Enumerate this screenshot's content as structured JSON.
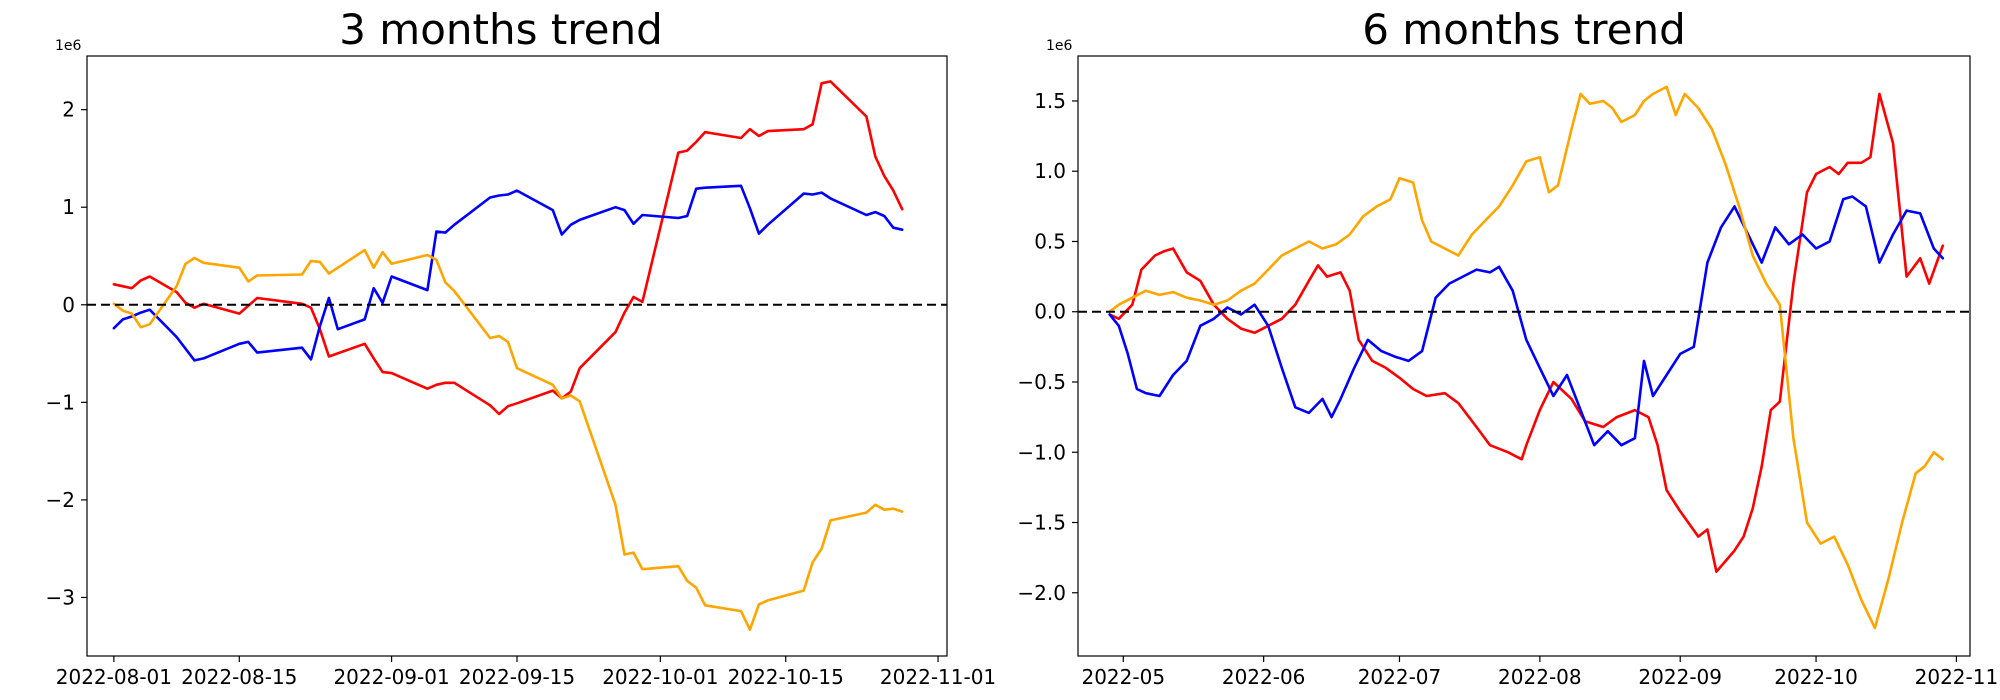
{
  "chart_data": [
    {
      "type": "line",
      "title": "3 months trend",
      "xlabel": "",
      "ylabel": "",
      "y_unit_multiplier": "1e6",
      "x_ticks": [
        "2022-08-01",
        "2022-08-15",
        "2022-09-01",
        "2022-09-15",
        "2022-10-01",
        "2022-10-15",
        "2022-11-01"
      ],
      "y_ticks": [
        "2",
        "1",
        "0",
        "−1",
        "−2",
        "−3"
      ],
      "xlim": [
        "2022-07-29",
        "2022-11-02"
      ],
      "ylim": [
        -3.6,
        2.55
      ],
      "reference_line": {
        "y": 0,
        "style": "dashed",
        "color": "#000000"
      },
      "grid": false,
      "series": [
        {
          "color": "#ff0000",
          "x": [
            "2022-08-01",
            "2022-08-03",
            "2022-08-04",
            "2022-08-05",
            "2022-08-08",
            "2022-08-09",
            "2022-08-10",
            "2022-08-11",
            "2022-08-15",
            "2022-08-17",
            "2022-08-22",
            "2022-08-23",
            "2022-08-24",
            "2022-08-25",
            "2022-08-29",
            "2022-08-30",
            "2022-08-31",
            "2022-09-01",
            "2022-09-05",
            "2022-09-06",
            "2022-09-07",
            "2022-09-08",
            "2022-09-12",
            "2022-09-13",
            "2022-09-14",
            "2022-09-15",
            "2022-09-19",
            "2022-09-20",
            "2022-09-21",
            "2022-09-22",
            "2022-09-26",
            "2022-09-27",
            "2022-09-28",
            "2022-09-29",
            "2022-10-03",
            "2022-10-04",
            "2022-10-05",
            "2022-10-06",
            "2022-10-10",
            "2022-10-11",
            "2022-10-12",
            "2022-10-13",
            "2022-10-17",
            "2022-10-18",
            "2022-10-19",
            "2022-10-20",
            "2022-10-24",
            "2022-10-25",
            "2022-10-26",
            "2022-10-27",
            "2022-10-28"
          ],
          "values": [
            0.21,
            0.17,
            0.25,
            0.29,
            0.13,
            0.02,
            -0.03,
            0.01,
            -0.09,
            0.07,
            0.01,
            -0.03,
            -0.25,
            -0.53,
            -0.4,
            -0.55,
            -0.69,
            -0.7,
            -0.86,
            -0.82,
            -0.8,
            -0.8,
            -1.03,
            -1.12,
            -1.04,
            -1.01,
            -0.88,
            -0.96,
            -0.89,
            -0.65,
            -0.28,
            -0.08,
            0.08,
            0.03,
            1.56,
            1.58,
            1.67,
            1.77,
            1.71,
            1.8,
            1.73,
            1.78,
            1.8,
            1.85,
            2.27,
            2.29,
            1.93,
            1.52,
            1.32,
            1.17,
            0.98
          ]
        },
        {
          "color": "#0000ff",
          "x": [
            "2022-08-01",
            "2022-08-02",
            "2022-08-03",
            "2022-08-04",
            "2022-08-05",
            "2022-08-08",
            "2022-08-10",
            "2022-08-11",
            "2022-08-15",
            "2022-08-16",
            "2022-08-17",
            "2022-08-22",
            "2022-08-23",
            "2022-08-24",
            "2022-08-25",
            "2022-08-26",
            "2022-08-29",
            "2022-08-30",
            "2022-08-31",
            "2022-09-01",
            "2022-09-05",
            "2022-09-06",
            "2022-09-07",
            "2022-09-08",
            "2022-09-12",
            "2022-09-13",
            "2022-09-14",
            "2022-09-15",
            "2022-09-19",
            "2022-09-20",
            "2022-09-21",
            "2022-09-22",
            "2022-09-26",
            "2022-09-27",
            "2022-09-28",
            "2022-09-29",
            "2022-10-03",
            "2022-10-04",
            "2022-10-05",
            "2022-10-06",
            "2022-10-10",
            "2022-10-11",
            "2022-10-12",
            "2022-10-13",
            "2022-10-17",
            "2022-10-18",
            "2022-10-19",
            "2022-10-20",
            "2022-10-24",
            "2022-10-25",
            "2022-10-26",
            "2022-10-27",
            "2022-10-28"
          ],
          "values": [
            -0.24,
            -0.15,
            -0.12,
            -0.08,
            -0.05,
            -0.33,
            -0.57,
            -0.55,
            -0.4,
            -0.38,
            -0.49,
            -0.44,
            -0.56,
            -0.22,
            0.07,
            -0.25,
            -0.15,
            0.17,
            0.02,
            0.29,
            0.15,
            0.75,
            0.74,
            0.82,
            1.1,
            1.12,
            1.13,
            1.17,
            0.97,
            0.72,
            0.82,
            0.87,
            1.0,
            0.97,
            0.83,
            0.92,
            0.89,
            0.91,
            1.19,
            1.2,
            1.22,
            0.99,
            0.73,
            0.82,
            1.14,
            1.13,
            1.15,
            1.09,
            0.92,
            0.95,
            0.91,
            0.79,
            0.77
          ]
        },
        {
          "color": "#ffa500",
          "x": [
            "2022-08-01",
            "2022-08-02",
            "2022-08-03",
            "2022-08-04",
            "2022-08-05",
            "2022-08-08",
            "2022-08-09",
            "2022-08-10",
            "2022-08-11",
            "2022-08-15",
            "2022-08-16",
            "2022-08-17",
            "2022-08-22",
            "2022-08-23",
            "2022-08-24",
            "2022-08-25",
            "2022-08-29",
            "2022-08-30",
            "2022-08-31",
            "2022-09-01",
            "2022-09-05",
            "2022-09-06",
            "2022-09-07",
            "2022-09-08",
            "2022-09-12",
            "2022-09-13",
            "2022-09-14",
            "2022-09-15",
            "2022-09-19",
            "2022-09-20",
            "2022-09-21",
            "2022-09-22",
            "2022-09-26",
            "2022-09-27",
            "2022-09-28",
            "2022-09-29",
            "2022-10-03",
            "2022-10-04",
            "2022-10-05",
            "2022-10-06",
            "2022-10-10",
            "2022-10-11",
            "2022-10-12",
            "2022-10-13",
            "2022-10-17",
            "2022-10-18",
            "2022-10-19",
            "2022-10-20",
            "2022-10-24",
            "2022-10-25",
            "2022-10-26",
            "2022-10-27",
            "2022-10-28"
          ],
          "values": [
            0.01,
            -0.06,
            -0.09,
            -0.23,
            -0.2,
            0.19,
            0.42,
            0.48,
            0.43,
            0.38,
            0.24,
            0.3,
            0.31,
            0.45,
            0.44,
            0.32,
            0.56,
            0.38,
            0.54,
            0.42,
            0.51,
            0.46,
            0.23,
            0.14,
            -0.34,
            -0.32,
            -0.38,
            -0.65,
            -0.82,
            -0.96,
            -0.93,
            -0.99,
            -2.05,
            -2.56,
            -2.54,
            -2.71,
            -2.68,
            -2.83,
            -2.9,
            -3.08,
            -3.14,
            -3.33,
            -3.07,
            -3.03,
            -2.93,
            -2.64,
            -2.5,
            -2.21,
            -2.13,
            -2.05,
            -2.1,
            -2.09,
            -2.12
          ]
        }
      ]
    },
    {
      "type": "line",
      "title": "6 months trend",
      "xlabel": "",
      "ylabel": "",
      "y_unit_multiplier": "1e6",
      "x_ticks": [
        "2022-05",
        "2022-06",
        "2022-07",
        "2022-08",
        "2022-09",
        "2022-10",
        "2022-11"
      ],
      "y_ticks": [
        "1.5",
        "1.0",
        "0.5",
        "0.0",
        "−0.5",
        "−1.0",
        "−1.5",
        "−2.0"
      ],
      "xlim": [
        "2022-04-21",
        "2022-11-04"
      ],
      "ylim": [
        -2.45,
        1.82
      ],
      "reference_line": {
        "y": 0,
        "style": "dashed",
        "color": "#000000"
      },
      "grid": false,
      "series": [
        {
          "color": "#ff0000",
          "x": [
            "2022-04-28",
            "2022-04-30",
            "2022-05-03",
            "2022-05-05",
            "2022-05-08",
            "2022-05-10",
            "2022-05-12",
            "2022-05-15",
            "2022-05-18",
            "2022-05-21",
            "2022-05-24",
            "2022-05-27",
            "2022-05-30",
            "2022-06-02",
            "2022-06-05",
            "2022-06-08",
            "2022-06-11",
            "2022-06-13",
            "2022-06-15",
            "2022-06-18",
            "2022-06-20",
            "2022-06-22",
            "2022-06-25",
            "2022-06-28",
            "2022-07-01",
            "2022-07-04",
            "2022-07-07",
            "2022-07-11",
            "2022-07-14",
            "2022-07-18",
            "2022-07-21",
            "2022-07-25",
            "2022-07-28",
            "2022-07-29",
            "2022-08-01",
            "2022-08-04",
            "2022-08-08",
            "2022-08-11",
            "2022-08-15",
            "2022-08-18",
            "2022-08-22",
            "2022-08-25",
            "2022-08-27",
            "2022-08-29",
            "2022-09-01",
            "2022-09-05",
            "2022-09-07",
            "2022-09-09",
            "2022-09-13",
            "2022-09-15",
            "2022-09-17",
            "2022-09-19",
            "2022-09-21",
            "2022-09-23",
            "2022-09-26",
            "2022-09-29",
            "2022-10-01",
            "2022-10-04",
            "2022-10-06",
            "2022-10-08",
            "2022-10-11",
            "2022-10-13",
            "2022-10-15",
            "2022-10-18",
            "2022-10-21",
            "2022-10-24",
            "2022-10-26",
            "2022-10-29"
          ],
          "values": [
            -0.02,
            -0.05,
            0.05,
            0.3,
            0.4,
            0.43,
            0.45,
            0.28,
            0.22,
            0.05,
            -0.05,
            -0.12,
            -0.15,
            -0.1,
            -0.05,
            0.05,
            0.22,
            0.33,
            0.25,
            0.28,
            0.15,
            -0.2,
            -0.35,
            -0.4,
            -0.47,
            -0.55,
            -0.6,
            -0.58,
            -0.65,
            -0.82,
            -0.95,
            -1.0,
            -1.05,
            -0.95,
            -0.7,
            -0.5,
            -0.62,
            -0.78,
            -0.82,
            -0.75,
            -0.7,
            -0.75,
            -0.95,
            -1.27,
            -1.42,
            -1.6,
            -1.55,
            -1.85,
            -1.7,
            -1.6,
            -1.4,
            -1.1,
            -0.7,
            -0.64,
            0.2,
            0.85,
            0.98,
            1.03,
            0.98,
            1.06,
            1.06,
            1.1,
            1.55,
            1.2,
            0.25,
            0.38,
            0.2,
            0.47
          ]
        },
        {
          "color": "#0000ff",
          "x": [
            "2022-04-28",
            "2022-04-30",
            "2022-05-02",
            "2022-05-04",
            "2022-05-06",
            "2022-05-09",
            "2022-05-12",
            "2022-05-15",
            "2022-05-18",
            "2022-05-21",
            "2022-05-24",
            "2022-05-27",
            "2022-05-30",
            "2022-06-02",
            "2022-06-05",
            "2022-06-08",
            "2022-06-11",
            "2022-06-14",
            "2022-06-16",
            "2022-06-18",
            "2022-06-21",
            "2022-06-24",
            "2022-06-27",
            "2022-06-30",
            "2022-07-03",
            "2022-07-06",
            "2022-07-09",
            "2022-07-12",
            "2022-07-15",
            "2022-07-18",
            "2022-07-21",
            "2022-07-23",
            "2022-07-26",
            "2022-07-29",
            "2022-08-01",
            "2022-08-04",
            "2022-08-07",
            "2022-08-10",
            "2022-08-13",
            "2022-08-16",
            "2022-08-19",
            "2022-08-22",
            "2022-08-24",
            "2022-08-26",
            "2022-08-29",
            "2022-09-01",
            "2022-09-04",
            "2022-09-07",
            "2022-09-10",
            "2022-09-13",
            "2022-09-16",
            "2022-09-19",
            "2022-09-22",
            "2022-09-25",
            "2022-09-28",
            "2022-10-01",
            "2022-10-04",
            "2022-10-07",
            "2022-10-09",
            "2022-10-12",
            "2022-10-15",
            "2022-10-18",
            "2022-10-21",
            "2022-10-24",
            "2022-10-27",
            "2022-10-29"
          ],
          "values": [
            -0.02,
            -0.1,
            -0.3,
            -0.55,
            -0.58,
            -0.6,
            -0.45,
            -0.35,
            -0.1,
            -0.05,
            0.03,
            -0.02,
            0.05,
            -0.1,
            -0.4,
            -0.68,
            -0.72,
            -0.62,
            -0.75,
            -0.62,
            -0.4,
            -0.2,
            -0.28,
            -0.32,
            -0.35,
            -0.28,
            0.1,
            0.2,
            0.25,
            0.3,
            0.28,
            0.32,
            0.15,
            -0.2,
            -0.4,
            -0.6,
            -0.45,
            -0.7,
            -0.95,
            -0.85,
            -0.95,
            -0.9,
            -0.35,
            -0.6,
            -0.45,
            -0.3,
            -0.25,
            0.35,
            0.6,
            0.75,
            0.55,
            0.35,
            0.6,
            0.48,
            0.55,
            0.45,
            0.5,
            0.8,
            0.82,
            0.75,
            0.35,
            0.55,
            0.72,
            0.7,
            0.45,
            0.38
          ]
        },
        {
          "color": "#ffa500",
          "x": [
            "2022-04-28",
            "2022-04-30",
            "2022-05-03",
            "2022-05-06",
            "2022-05-09",
            "2022-05-12",
            "2022-05-15",
            "2022-05-18",
            "2022-05-21",
            "2022-05-24",
            "2022-05-27",
            "2022-05-30",
            "2022-06-02",
            "2022-06-05",
            "2022-06-08",
            "2022-06-11",
            "2022-06-14",
            "2022-06-17",
            "2022-06-20",
            "2022-06-23",
            "2022-06-26",
            "2022-06-29",
            "2022-07-01",
            "2022-07-04",
            "2022-07-06",
            "2022-07-08",
            "2022-07-11",
            "2022-07-14",
            "2022-07-17",
            "2022-07-20",
            "2022-07-23",
            "2022-07-26",
            "2022-07-29",
            "2022-08-01",
            "2022-08-03",
            "2022-08-05",
            "2022-08-08",
            "2022-08-10",
            "2022-08-12",
            "2022-08-15",
            "2022-08-17",
            "2022-08-19",
            "2022-08-22",
            "2022-08-24",
            "2022-08-26",
            "2022-08-29",
            "2022-08-31",
            "2022-09-02",
            "2022-09-05",
            "2022-09-08",
            "2022-09-11",
            "2022-09-14",
            "2022-09-17",
            "2022-09-20",
            "2022-09-23",
            "2022-09-26",
            "2022-09-29",
            "2022-10-02",
            "2022-10-05",
            "2022-10-08",
            "2022-10-11",
            "2022-10-14",
            "2022-10-17",
            "2022-10-20",
            "2022-10-23",
            "2022-10-25",
            "2022-10-27",
            "2022-10-29"
          ],
          "values": [
            0.0,
            0.05,
            0.1,
            0.15,
            0.12,
            0.14,
            0.1,
            0.08,
            0.05,
            0.08,
            0.15,
            0.2,
            0.3,
            0.4,
            0.45,
            0.5,
            0.45,
            0.48,
            0.55,
            0.68,
            0.75,
            0.8,
            0.95,
            0.92,
            0.65,
            0.5,
            0.45,
            0.4,
            0.55,
            0.65,
            0.75,
            0.9,
            1.07,
            1.1,
            0.85,
            0.9,
            1.3,
            1.55,
            1.48,
            1.5,
            1.45,
            1.35,
            1.4,
            1.5,
            1.55,
            1.6,
            1.4,
            1.55,
            1.45,
            1.3,
            1.05,
            0.75,
            0.4,
            0.2,
            0.05,
            -0.9,
            -1.5,
            -1.65,
            -1.6,
            -1.8,
            -2.05,
            -2.25,
            -1.9,
            -1.5,
            -1.15,
            -1.1,
            -1.0,
            -1.05
          ]
        }
      ]
    }
  ]
}
